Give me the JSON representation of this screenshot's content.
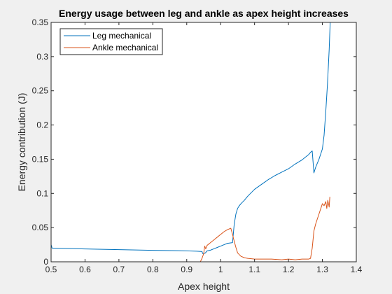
{
  "chart_data": {
    "type": "line",
    "title": "Energy usage between leg and ankle as apex height increases",
    "xlabel": "Apex height",
    "ylabel": "Energy contribution (J)",
    "xlim": [
      0.5,
      1.4
    ],
    "ylim": [
      0,
      0.35
    ],
    "xticks": [
      0.5,
      0.6,
      0.7,
      0.8,
      0.9,
      1.0,
      1.1,
      1.2,
      1.3,
      1.4
    ],
    "xtick_labels": [
      "0.5",
      "0.6",
      "0.7",
      "0.8",
      "0.9",
      "1",
      "1.1",
      "1.2",
      "1.3",
      "1.4"
    ],
    "yticks": [
      0,
      0.05,
      0.1,
      0.15,
      0.2,
      0.25,
      0.3,
      0.35
    ],
    "ytick_labels": [
      "0",
      "0.05",
      "0.1",
      "0.15",
      "0.2",
      "0.25",
      "0.3",
      "0.35"
    ],
    "grid": false,
    "legend_position": "top-left",
    "series": [
      {
        "name": "Leg mechanical",
        "color": "#0072bd",
        "x": [
          0.5,
          0.503,
          0.508,
          0.55,
          0.6,
          0.7,
          0.8,
          0.9,
          0.93,
          0.945,
          0.947,
          0.95,
          0.955,
          0.96,
          0.97,
          0.98,
          0.99,
          1.0,
          1.01,
          1.02,
          1.035,
          1.04,
          1.045,
          1.05,
          1.055,
          1.06,
          1.07,
          1.08,
          1.09,
          1.1,
          1.12,
          1.14,
          1.16,
          1.18,
          1.2,
          1.22,
          1.24,
          1.25,
          1.26,
          1.265,
          1.27,
          1.275,
          1.28,
          1.29,
          1.3,
          1.305,
          1.31,
          1.315,
          1.32,
          1.323
        ],
        "y": [
          0.025,
          0.02,
          0.02,
          0.0195,
          0.0188,
          0.0178,
          0.0168,
          0.016,
          0.0155,
          0.015,
          0.012,
          0.012,
          0.013,
          0.016,
          0.017,
          0.019,
          0.021,
          0.023,
          0.025,
          0.027,
          0.028,
          0.055,
          0.07,
          0.078,
          0.082,
          0.085,
          0.09,
          0.096,
          0.101,
          0.106,
          0.113,
          0.12,
          0.126,
          0.131,
          0.136,
          0.143,
          0.149,
          0.153,
          0.157,
          0.16,
          0.162,
          0.13,
          0.138,
          0.15,
          0.165,
          0.185,
          0.22,
          0.26,
          0.31,
          0.35
        ]
      },
      {
        "name": "Ankle mechanical",
        "color": "#d95319",
        "x": [
          0.5,
          0.6,
          0.7,
          0.8,
          0.9,
          0.94,
          0.945,
          0.95,
          0.953,
          0.956,
          0.96,
          0.97,
          0.98,
          0.99,
          1.0,
          1.01,
          1.02,
          1.03,
          1.035,
          1.04,
          1.045,
          1.05,
          1.06,
          1.07,
          1.08,
          1.1,
          1.12,
          1.15,
          1.18,
          1.2,
          1.22,
          1.24,
          1.26,
          1.265,
          1.27,
          1.275,
          1.28,
          1.29,
          1.3,
          1.305,
          1.31,
          1.313,
          1.316,
          1.32,
          1.322
        ],
        "y": [
          0.0,
          0.0,
          0.0,
          0.0,
          0.0,
          0.0,
          0.005,
          0.012,
          0.023,
          0.019,
          0.024,
          0.028,
          0.032,
          0.036,
          0.04,
          0.044,
          0.047,
          0.049,
          0.04,
          0.03,
          0.021,
          0.013,
          0.008,
          0.006,
          0.005,
          0.004,
          0.004,
          0.004,
          0.003,
          0.004,
          0.003,
          0.004,
          0.004,
          0.005,
          0.02,
          0.045,
          0.055,
          0.07,
          0.085,
          0.082,
          0.088,
          0.078,
          0.09,
          0.08,
          0.095
        ]
      }
    ]
  }
}
